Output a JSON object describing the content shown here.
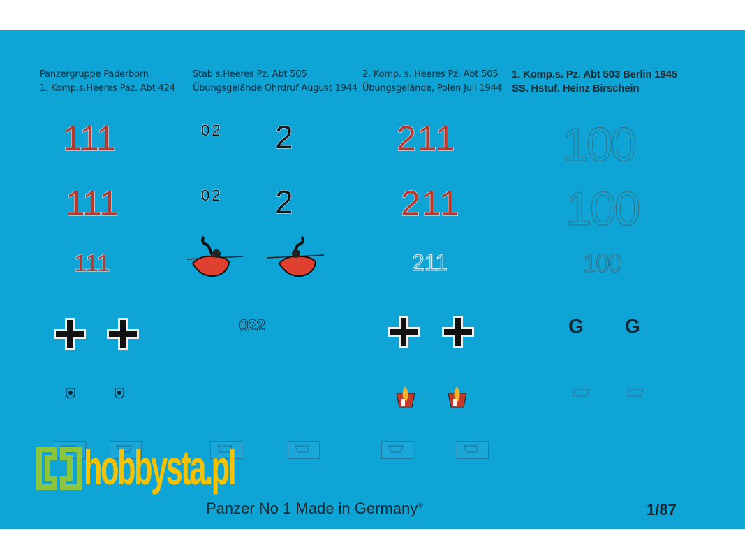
{
  "colors": {
    "sheet": "#0ea4d6",
    "red_number": "#b23a30",
    "black": "#10181c",
    "logo_yellow": "#f6c200",
    "logo_green": "#8cc63f"
  },
  "captions": [
    {
      "line1": "Panzergruppe Paderborn",
      "line2": "1. Komp.s.Heeres Paz. Abt 424"
    },
    {
      "line1": "Stab s.Heeres Pz. Abt 505",
      "line2": "Übungsgelände Ohrdruf August 1944"
    },
    {
      "line1": "2. Komp. s. Heeres Pz. Abt 505",
      "line2": "Übungsgelände, Polen Juli 1944"
    },
    {
      "line1": "1. Komp.s. Pz. Abt 503 Berlin 1945",
      "line2": "SS. Hstuf. Heinz Birschein"
    }
  ],
  "decals": {
    "col1": [
      "111",
      "111",
      "111"
    ],
    "col2a": [
      "02",
      "02"
    ],
    "col2b": [
      "2",
      "2"
    ],
    "col2_number": "022",
    "col3": [
      "211",
      "211",
      "211"
    ],
    "col4": [
      "100",
      "100",
      "100"
    ],
    "letters": [
      "G",
      "G"
    ],
    "icons": [
      "balkenkreuz-icon",
      "knight-emblem-icon",
      "unit-shield-icon",
      "flame-emblem-icon",
      "tank-tactical-sign-icon"
    ]
  },
  "footer": {
    "text": "Panzer No 1 Made in Germany",
    "mark": "®",
    "scale": "1/87"
  },
  "watermark": {
    "text": "hobbysta.pl"
  }
}
